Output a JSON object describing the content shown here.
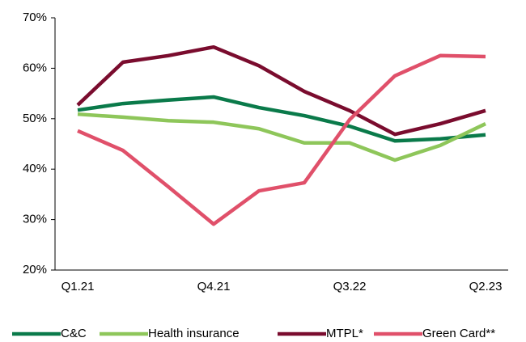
{
  "chart_data": {
    "type": "line",
    "categories": [
      "Q1.21",
      null,
      null,
      "Q4.21",
      null,
      null,
      "Q3.22",
      null,
      null,
      "Q2.23"
    ],
    "series": [
      {
        "name": "C&C",
        "color": "#0a7a4a",
        "values": [
          51.7,
          53.0,
          53.7,
          54.3,
          52.2,
          50.6,
          48.5,
          45.6,
          46.0,
          46.8
        ]
      },
      {
        "name": "Health insurance",
        "color": "#8ec65a",
        "values": [
          50.9,
          50.3,
          49.6,
          49.3,
          48.0,
          45.2,
          45.2,
          41.8,
          44.7,
          49.0
        ]
      },
      {
        "name": "MTPL*",
        "color": "#7a0c2e",
        "values": [
          52.7,
          61.2,
          62.5,
          64.2,
          60.5,
          55.4,
          51.6,
          46.9,
          49.0,
          51.6
        ]
      },
      {
        "name": "Green Card**",
        "color": "#e0506a",
        "values": [
          47.6,
          43.7,
          36.5,
          29.1,
          35.7,
          37.3,
          49.8,
          58.5,
          62.5,
          62.3
        ]
      }
    ],
    "ylim": [
      20,
      70
    ],
    "yticks": [
      {
        "value": 20,
        "label": "20%"
      },
      {
        "value": 30,
        "label": "30%"
      },
      {
        "value": 40,
        "label": "40%"
      },
      {
        "value": 50,
        "label": "50%"
      },
      {
        "value": 60,
        "label": "60%"
      },
      {
        "value": 70,
        "label": "70%"
      }
    ],
    "legend": "bottom"
  }
}
